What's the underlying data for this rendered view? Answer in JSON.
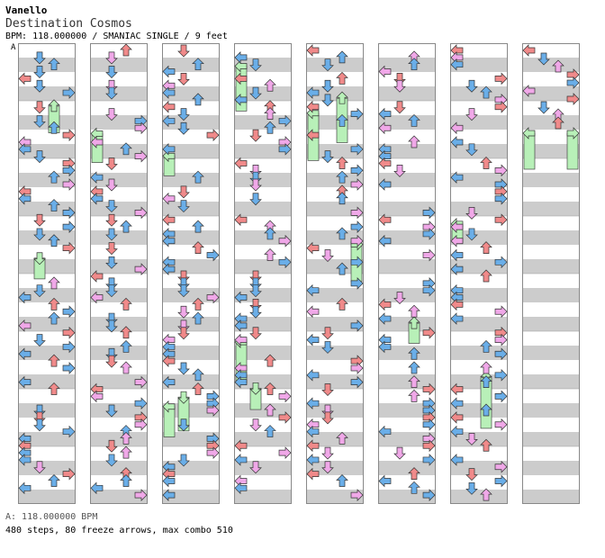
{
  "header": {
    "artist": "Vanello",
    "title": "Destination Cosmos",
    "meta": "BPM: 118.000000 / SMANIAC SINGLE / 9 feet",
    "bpm_marker": "A"
  },
  "footer": {
    "bpm_legend": "A: 118.000000 BPM",
    "stats": "480 steps, 80 freeze arrows, max combo 510"
  },
  "chart_data": {
    "type": "step-chart",
    "columns": 8,
    "measures_per_column": 8,
    "lanes": [
      "left",
      "down",
      "up",
      "right"
    ],
    "colors": {
      "quarter": "#f08a8a",
      "eighth": "#6aaee8",
      "sixteenth": "#f0a8e8",
      "freeze": "#b8f0b8",
      "stripe": "#cccccc"
    }
  }
}
